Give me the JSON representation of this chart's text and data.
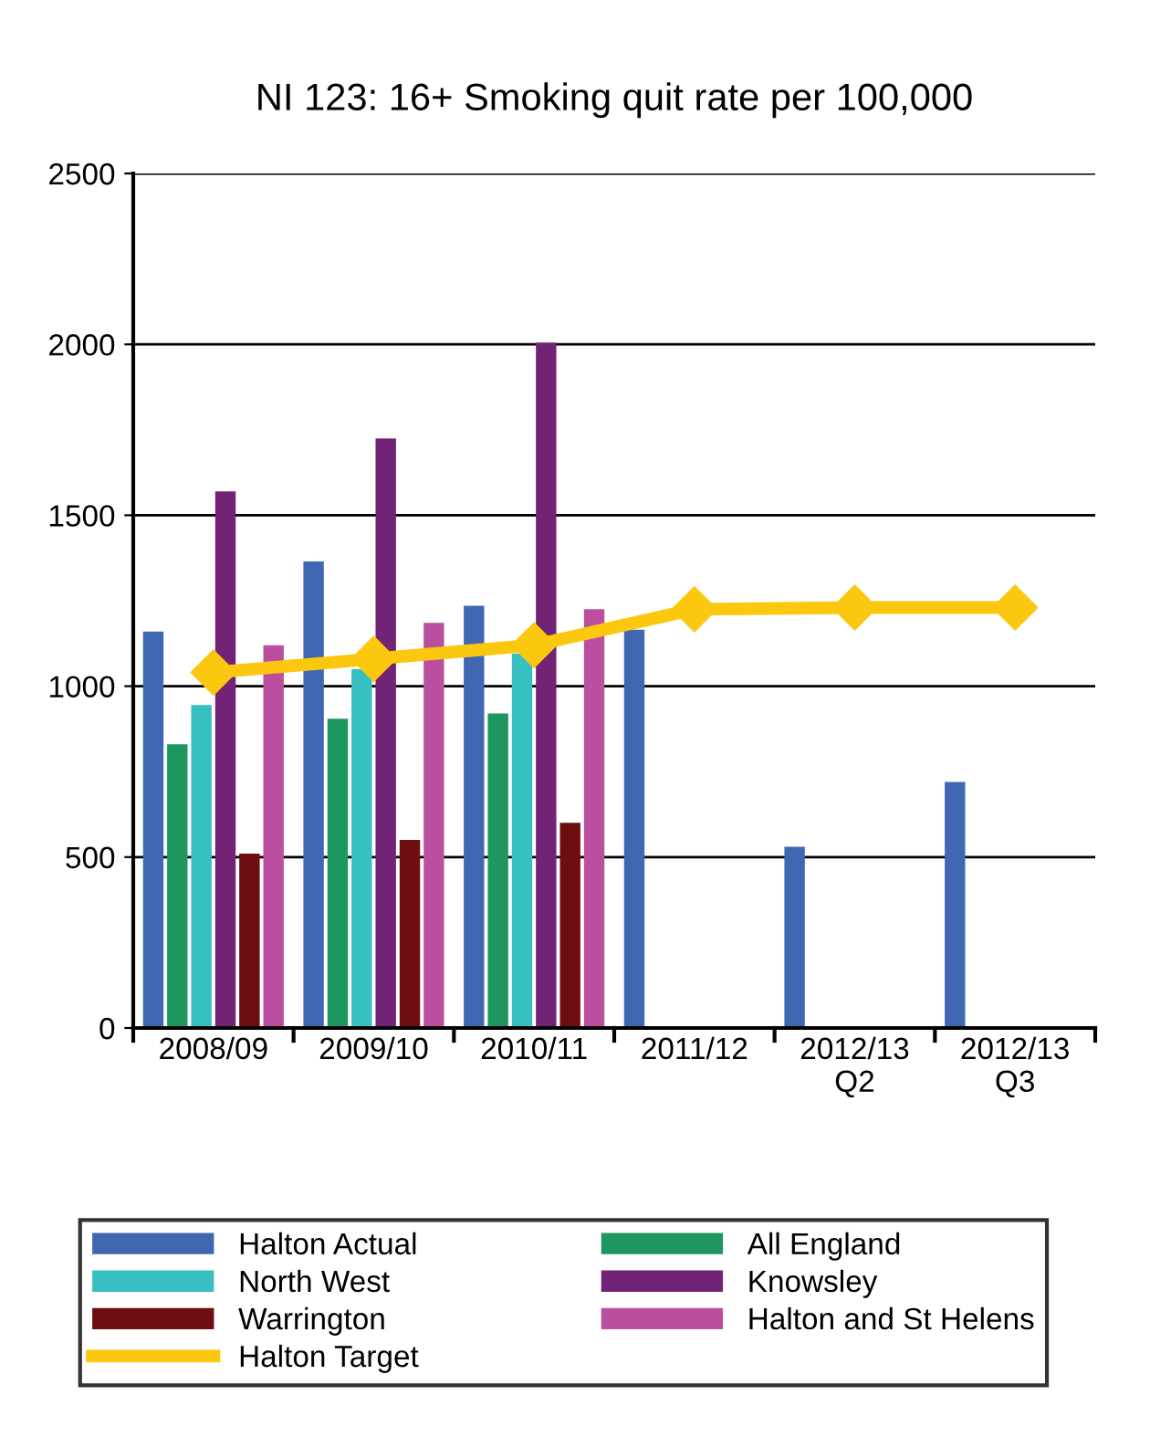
{
  "chart_data": {
    "type": "bar",
    "title": "NI 123: 16+ Smoking quit rate per 100,000",
    "categories": [
      "2008/09",
      "2009/10",
      "2010/11",
      "2011/12",
      "2012/13\nQ2",
      "2012/13\nQ3"
    ],
    "series": [
      {
        "name": "Halton Actual",
        "color": "#4068b2",
        "values": [
          1160,
          1365,
          1235,
          1165,
          530,
          720
        ]
      },
      {
        "name": "All England",
        "color": "#1e9660",
        "values": [
          830,
          905,
          920,
          null,
          null,
          null
        ]
      },
      {
        "name": "North West",
        "color": "#38bfc2",
        "values": [
          945,
          1050,
          1095,
          null,
          null,
          null
        ]
      },
      {
        "name": "Knowsley",
        "color": "#722375",
        "values": [
          1570,
          1725,
          2005,
          null,
          null,
          null
        ]
      },
      {
        "name": "Warrington",
        "color": "#6e0e10",
        "values": [
          510,
          550,
          600,
          null,
          null,
          null
        ]
      },
      {
        "name": "Halton and St Helens",
        "color": "#bb4f9f",
        "values": [
          1120,
          1185,
          1225,
          null,
          null,
          null
        ]
      },
      {
        "name": "Halton Target",
        "type": "line",
        "color": "#fcc70f",
        "marker": "diamond",
        "values": [
          1040,
          1080,
          1120,
          1225,
          1230,
          1230
        ]
      }
    ],
    "ylim": [
      0,
      2500
    ],
    "yticks": [
      0,
      500,
      1000,
      1500,
      2000,
      2500
    ],
    "grid": "y",
    "legend": "bottom"
  }
}
